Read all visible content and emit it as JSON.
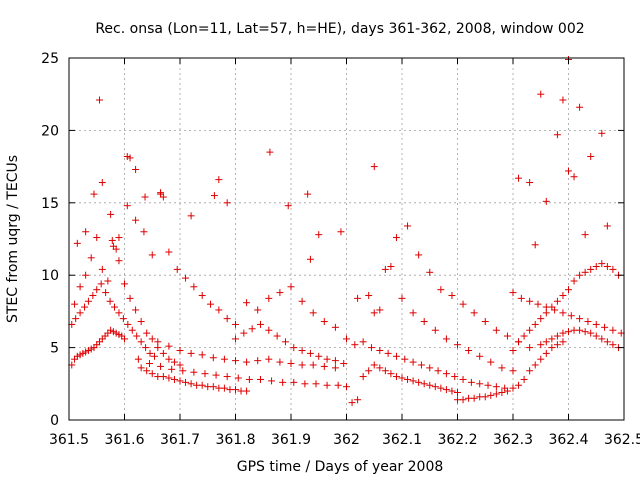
{
  "chart_data": {
    "type": "scatter",
    "title": "Rec. onsa (Lon=11, Lat=57, h=HE), days 361-362, 2008, window 002",
    "xlabel": "GPS time / Days of year 2008",
    "ylabel": "STEC from uqrg / TECUs",
    "xlim": [
      361.5,
      362.5
    ],
    "ylim": [
      0,
      25
    ],
    "xticks": [
      "361.5",
      "361.6",
      "361.7",
      "361.8",
      "361.9",
      "362",
      "362.1",
      "362.2",
      "362.3",
      "362.4",
      "362.5"
    ],
    "yticks": [
      "0",
      "5",
      "10",
      "15",
      "20",
      "25"
    ],
    "grid": true,
    "marker": "+",
    "color": "#dd0000",
    "series": [
      {
        "x": [
          361.505,
          361.51,
          361.515,
          361.52,
          361.525,
          361.53,
          361.535,
          361.54,
          361.545,
          361.55,
          361.555,
          361.56,
          361.565,
          361.57,
          361.575,
          361.58,
          361.585,
          361.59,
          361.595,
          361.6,
          361.505,
          361.512,
          361.52,
          361.528,
          361.535,
          361.543,
          361.55,
          361.558,
          361.566,
          361.574,
          361.582,
          361.59,
          361.598,
          361.606,
          361.614,
          361.622,
          361.63,
          361.638,
          361.646,
          361.654,
          361.51,
          361.52,
          361.53,
          361.54,
          361.55,
          361.56,
          361.57,
          361.58,
          361.59,
          361.6,
          361.61,
          361.62,
          361.63,
          361.64,
          361.65,
          361.66,
          361.67,
          361.68,
          361.69,
          361.7,
          361.515,
          361.53,
          361.545,
          361.56,
          361.575,
          361.59,
          361.605,
          361.62,
          361.635,
          361.65,
          361.665,
          361.68,
          361.695,
          361.71,
          361.725,
          361.74,
          361.755,
          361.77,
          361.785,
          361.8,
          361.555,
          361.578,
          361.585,
          361.605,
          361.61,
          361.62,
          361.637,
          361.665,
          361.67,
          361.72,
          361.762,
          361.77,
          361.785,
          361.862,
          361.895,
          361.93,
          361.935,
          361.95,
          361.99,
          362.05,
          361.63,
          361.64,
          361.65,
          361.66,
          361.67,
          361.68,
          361.69,
          361.7,
          361.71,
          361.72,
          361.73,
          361.74,
          361.75,
          361.76,
          361.77,
          361.78,
          361.79,
          361.8,
          361.81,
          361.82,
          361.625,
          361.645,
          361.665,
          361.685,
          361.705,
          361.725,
          361.745,
          361.765,
          361.785,
          361.805,
          361.825,
          361.845,
          361.865,
          361.885,
          361.905,
          361.925,
          361.945,
          361.965,
          361.985,
          362.0,
          361.66,
          361.68,
          361.7,
          361.72,
          361.74,
          361.76,
          361.78,
          361.8,
          361.82,
          361.84,
          361.86,
          361.88,
          361.9,
          361.92,
          361.94,
          361.96,
          361.98,
          361.8,
          361.815,
          361.83,
          361.845,
          361.86,
          361.875,
          361.89,
          361.905,
          361.92,
          361.935,
          361.95,
          361.965,
          361.98,
          361.995,
          361.82,
          361.84,
          361.86,
          361.88,
          361.9,
          361.92,
          361.94,
          361.96,
          361.98,
          362.01,
          362.02,
          362.03,
          362.04,
          362.05,
          362.06,
          362.07,
          362.08,
          362.09,
          362.1,
          362.11,
          362.12,
          362.13,
          362.14,
          362.15,
          362.16,
          362.17,
          362.18,
          362.19,
          362.2,
          362.0,
          362.015,
          362.03,
          362.045,
          362.06,
          362.075,
          362.09,
          362.105,
          362.12,
          362.135,
          362.15,
          362.165,
          362.18,
          362.195,
          362.21,
          362.225,
          362.24,
          362.255,
          362.27,
          362.285,
          362.02,
          362.04,
          362.06,
          362.08,
          362.1,
          362.12,
          362.14,
          362.16,
          362.18,
          362.2,
          362.22,
          362.24,
          362.26,
          362.28,
          362.3,
          362.05,
          362.07,
          362.09,
          362.11,
          362.13,
          362.15,
          362.17,
          362.19,
          362.21,
          362.23,
          362.25,
          362.27,
          362.29,
          362.31,
          362.33,
          362.2,
          362.21,
          362.22,
          362.23,
          362.24,
          362.25,
          362.26,
          362.27,
          362.28,
          362.29,
          362.3,
          362.31,
          362.32,
          362.33,
          362.34,
          362.35,
          362.36,
          362.37,
          362.38,
          362.39,
          362.3,
          362.31,
          362.32,
          362.33,
          362.34,
          362.35,
          362.36,
          362.37,
          362.38,
          362.39,
          362.4,
          362.41,
          362.42,
          362.43,
          362.44,
          362.45,
          362.46,
          362.47,
          362.48,
          362.49,
          362.3,
          362.315,
          362.33,
          362.345,
          362.36,
          362.375,
          362.39,
          362.405,
          362.42,
          362.435,
          362.45,
          362.465,
          362.48,
          362.495,
          362.35,
          362.36,
          362.37,
          362.38,
          362.39,
          362.4,
          362.41,
          362.42,
          362.43,
          362.44,
          362.45,
          362.46,
          362.47,
          362.48,
          362.49,
          362.31,
          362.33,
          362.34,
          362.35,
          362.39,
          362.4,
          362.41,
          362.42,
          362.44,
          362.46,
          362.47,
          362.4,
          362.38,
          362.36,
          362.43
        ],
        "y": [
          3.8,
          4.2,
          4.4,
          4.5,
          4.6,
          4.7,
          4.8,
          4.9,
          5.0,
          5.2,
          5.4,
          5.6,
          5.8,
          6.0,
          6.2,
          6.1,
          6.0,
          5.9,
          5.8,
          5.6,
          6.6,
          7.0,
          7.4,
          7.8,
          8.2,
          8.6,
          9.0,
          9.4,
          8.8,
          8.2,
          7.8,
          7.4,
          7.0,
          6.6,
          6.2,
          5.8,
          5.4,
          5.0,
          4.6,
          4.4,
          8.0,
          9.2,
          10.0,
          11.2,
          12.6,
          10.4,
          9.6,
          12.0,
          11.0,
          9.4,
          8.4,
          7.6,
          6.8,
          6.0,
          5.6,
          5.0,
          4.6,
          4.2,
          4.0,
          3.8,
          12.2,
          13.0,
          15.6,
          16.4,
          14.2,
          12.6,
          14.8,
          13.8,
          13.0,
          11.4,
          15.6,
          11.6,
          10.4,
          9.8,
          9.2,
          8.6,
          8.0,
          7.6,
          7.0,
          6.6,
          22.1,
          12.4,
          11.8,
          18.2,
          18.1,
          17.3,
          15.4,
          15.7,
          15.4,
          14.1,
          15.5,
          16.6,
          15.0,
          18.5,
          14.8,
          15.6,
          11.1,
          12.8,
          13.0,
          17.5,
          3.6,
          3.4,
          3.2,
          3.0,
          3.0,
          2.9,
          2.8,
          2.7,
          2.6,
          2.5,
          2.4,
          2.4,
          2.3,
          2.3,
          2.2,
          2.2,
          2.1,
          2.1,
          2.0,
          2.0,
          4.2,
          3.9,
          3.7,
          3.5,
          3.4,
          3.3,
          3.2,
          3.1,
          3.0,
          2.9,
          2.8,
          2.8,
          2.7,
          2.6,
          2.6,
          2.5,
          2.5,
          2.4,
          2.4,
          2.3,
          5.4,
          5.1,
          4.8,
          4.6,
          4.5,
          4.3,
          4.2,
          4.1,
          4.0,
          4.1,
          4.2,
          4.0,
          3.9,
          3.8,
          3.8,
          3.7,
          3.6,
          5.6,
          6.0,
          6.3,
          6.6,
          6.2,
          5.8,
          5.4,
          5.0,
          4.8,
          4.6,
          4.4,
          4.2,
          4.1,
          3.9,
          8.1,
          7.6,
          8.4,
          8.8,
          9.2,
          8.2,
          7.4,
          6.8,
          6.4,
          1.2,
          1.4,
          3.0,
          3.4,
          3.8,
          3.6,
          3.4,
          3.2,
          3.0,
          2.9,
          2.8,
          2.7,
          2.6,
          2.5,
          2.4,
          2.3,
          2.2,
          2.1,
          2.0,
          1.9,
          5.6,
          5.2,
          5.4,
          5.0,
          4.8,
          4.6,
          4.4,
          4.2,
          4.0,
          3.8,
          3.6,
          3.4,
          3.2,
          3.0,
          2.8,
          2.6,
          2.5,
          2.4,
          2.3,
          2.2,
          8.4,
          8.6,
          7.6,
          10.6,
          8.4,
          7.4,
          6.8,
          6.2,
          5.6,
          5.2,
          4.8,
          4.4,
          4.0,
          3.6,
          3.4,
          7.4,
          10.4,
          12.6,
          13.4,
          11.4,
          10.2,
          9.0,
          8.6,
          8.0,
          7.4,
          6.8,
          6.2,
          5.8,
          5.4,
          5.0,
          1.4,
          1.4,
          1.5,
          1.5,
          1.6,
          1.6,
          1.7,
          1.8,
          1.9,
          2.0,
          2.2,
          2.4,
          2.8,
          3.4,
          3.8,
          4.2,
          4.6,
          5.0,
          5.2,
          5.4,
          4.8,
          5.4,
          5.8,
          6.2,
          6.6,
          7.0,
          7.4,
          7.8,
          8.2,
          8.6,
          9.0,
          9.6,
          10.0,
          10.2,
          10.4,
          10.6,
          10.8,
          10.6,
          10.4,
          10.0,
          8.8,
          8.4,
          8.2,
          8.0,
          7.8,
          7.6,
          7.4,
          7.2,
          7.0,
          6.8,
          6.6,
          6.4,
          6.2,
          6.0,
          5.2,
          5.4,
          5.6,
          5.8,
          6.0,
          6.1,
          6.2,
          6.2,
          6.1,
          6.0,
          5.8,
          5.6,
          5.4,
          5.2,
          5.0,
          16.7,
          16.4,
          12.1,
          22.5,
          22.1,
          24.9,
          16.8,
          21.6,
          18.2,
          19.8,
          13.4,
          17.2,
          19.7,
          15.1,
          12.8
        ]
      }
    ]
  }
}
